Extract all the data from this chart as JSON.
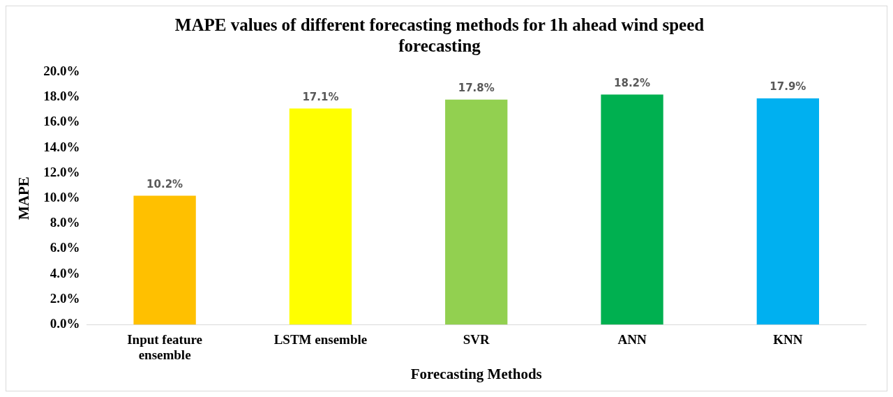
{
  "chart_data": {
    "type": "bar",
    "title": "MAPE values of different forecasting methods for 1h ahead wind speed forecasting",
    "xlabel": "Forecasting Methods",
    "ylabel": "MAPE",
    "categories": [
      "Input feature ensemble",
      "LSTM ensemble",
      "SVR",
      "ANN",
      "KNN"
    ],
    "values": [
      10.2,
      17.1,
      17.8,
      18.2,
      17.9
    ],
    "colors": [
      "#ffc000",
      "#ffff00",
      "#92d050",
      "#00b050",
      "#00b0f0"
    ],
    "value_labels": [
      "10.2%",
      "17.1%",
      "17.8%",
      "18.2%",
      "17.9%"
    ],
    "ylim": [
      0,
      20
    ],
    "yticks": [
      {
        "value": 0,
        "label": "0.0%"
      },
      {
        "value": 2,
        "label": "2.0%"
      },
      {
        "value": 4,
        "label": "4.0%"
      },
      {
        "value": 6,
        "label": "6.0%"
      },
      {
        "value": 8,
        "label": "8.0%"
      },
      {
        "value": 10,
        "label": "10.0%"
      },
      {
        "value": 12,
        "label": "12.0%"
      },
      {
        "value": 14,
        "label": "14.0%"
      },
      {
        "value": 16,
        "label": "16.0%"
      },
      {
        "value": 18,
        "label": "18.0%"
      },
      {
        "value": 20,
        "label": "20.0%"
      }
    ],
    "grid": false,
    "legend": false
  }
}
